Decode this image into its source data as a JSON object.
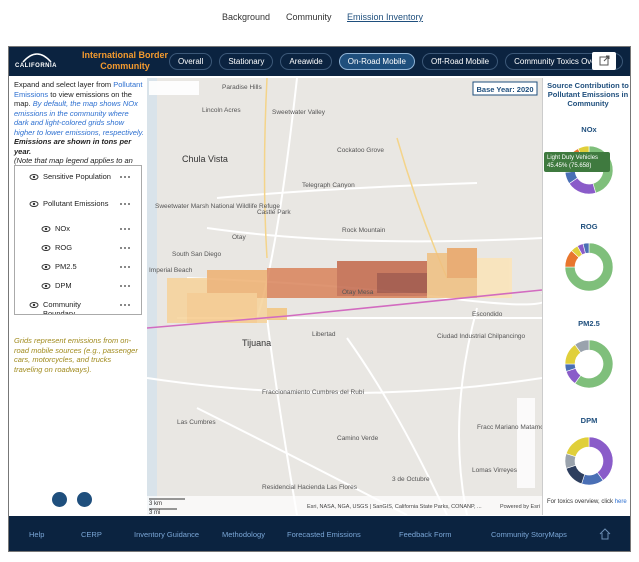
{
  "nav": {
    "items": [
      "Background",
      "Community",
      "Emission Inventory"
    ],
    "active": 2
  },
  "header": {
    "logo": "CALIFORNIA",
    "title": "International Border Community",
    "tabs": [
      "Overall",
      "Stationary",
      "Areawide",
      "On-Road Mobile",
      "Off-Road Mobile",
      "Community Toxics Overview"
    ],
    "active_tab": 3
  },
  "left_panel": {
    "intro": [
      "Expand and select layer from ",
      "Pollutant Emissions",
      " to view emissions on the map. ",
      "By default, the map shows NOx emissions in the community where dark and light-colored grids show higher to lower emissions, respectively."
    ],
    "emphasis": "Emissions are shown in tons per year.",
    "note": "(Note that map legend applies to an",
    "layers": [
      {
        "label": "Sensitive Population",
        "level": 0
      },
      {
        "label": "Pollutant Emissions",
        "level": 0
      },
      {
        "label": "NOx",
        "level": 1
      },
      {
        "label": "ROG",
        "level": 1
      },
      {
        "label": "PM2.5",
        "level": 1
      },
      {
        "label": "DPM",
        "level": 1
      },
      {
        "label": "Community Boundary",
        "level": 0
      }
    ],
    "footnote": "Grids represent emissions from on-road mobile sources (e.g., passenger cars, motorcycles, and trucks traveling on roadways)."
  },
  "map": {
    "base_year": "Base Year: 2020",
    "labels": [
      "Paradise Hills",
      "Lincoln Acres",
      "Chula Vista",
      "Sweetwater Valley",
      "Cockatoo Grove",
      "Telegraph Canyon",
      "Castle Park",
      "Sweetwater Marsh National Wildlife Refuge",
      "Otay",
      "Rock Mountain",
      "South San Diego",
      "Imperial Beach",
      "Otay Mesa",
      "Libertad",
      "Tijuana",
      "Escondido",
      "Ciudad Industrial Chilpancingo",
      "Fraccionamiento Cumbres del Rubí",
      "Las Cumbres",
      "Camino Verde",
      "Fracc Mariano Matamoros Centro",
      "3 de Octubre",
      "Lomas Virreyes",
      "Residencial Hacienda Las Flores"
    ],
    "scale": [
      "3 km",
      "3 mi"
    ],
    "attribution": "Esri, NASA, NGA, USGS | SanGIS, California State Parks, CONANP, ...",
    "powered": "Powered by Esri"
  },
  "source_panel": {
    "title": "Source Contribution to Pollutant Emissions in Community",
    "charts": [
      {
        "title": "NOx",
        "type": "donut",
        "segments": [
          {
            "value": 45.45,
            "color": "#7fbf7b"
          },
          {
            "value": 20,
            "color": "#8a5cc9"
          },
          {
            "value": 8,
            "color": "#4a6fb5"
          },
          {
            "value": 9,
            "color": "#9aa3ad"
          },
          {
            "value": 10,
            "color": "#e8762d"
          },
          {
            "value": 7.55,
            "color": "#e0cf3a"
          }
        ]
      },
      {
        "title": "ROG",
        "type": "donut",
        "segments": [
          {
            "value": 75,
            "color": "#7fbf7b"
          },
          {
            "value": 12,
            "color": "#e8762d"
          },
          {
            "value": 5,
            "color": "#e0cf3a"
          },
          {
            "value": 4,
            "color": "#8a5cc9"
          },
          {
            "value": 4,
            "color": "#4a6fb5"
          }
        ]
      },
      {
        "title": "PM2.5",
        "type": "donut",
        "segments": [
          {
            "value": 60,
            "color": "#7fbf7b"
          },
          {
            "value": 10,
            "color": "#8a5cc9"
          },
          {
            "value": 5,
            "color": "#4a6fb5"
          },
          {
            "value": 15,
            "color": "#e0cf3a"
          },
          {
            "value": 10,
            "color": "#9aa3ad"
          }
        ]
      },
      {
        "title": "DPM",
        "type": "donut",
        "segments": [
          {
            "value": 40,
            "color": "#8a5cc9"
          },
          {
            "value": 15,
            "color": "#4a6fb5"
          },
          {
            "value": 15,
            "color": "#2d3e5e"
          },
          {
            "value": 10,
            "color": "#9aa3ad"
          },
          {
            "value": 20,
            "color": "#e0cf3a"
          }
        ]
      }
    ],
    "tooltip": {
      "label": "Light Duty Vehicles",
      "text": "45.45% (75.658)"
    },
    "footer_text": "For toxics overview, click ",
    "footer_link": "here"
  },
  "footer": {
    "links": [
      "Help",
      "CERP",
      "Inventory Guidance",
      "Methodology",
      "Forecasted Emissions",
      "Feedback Form",
      "Community StoryMaps"
    ]
  }
}
